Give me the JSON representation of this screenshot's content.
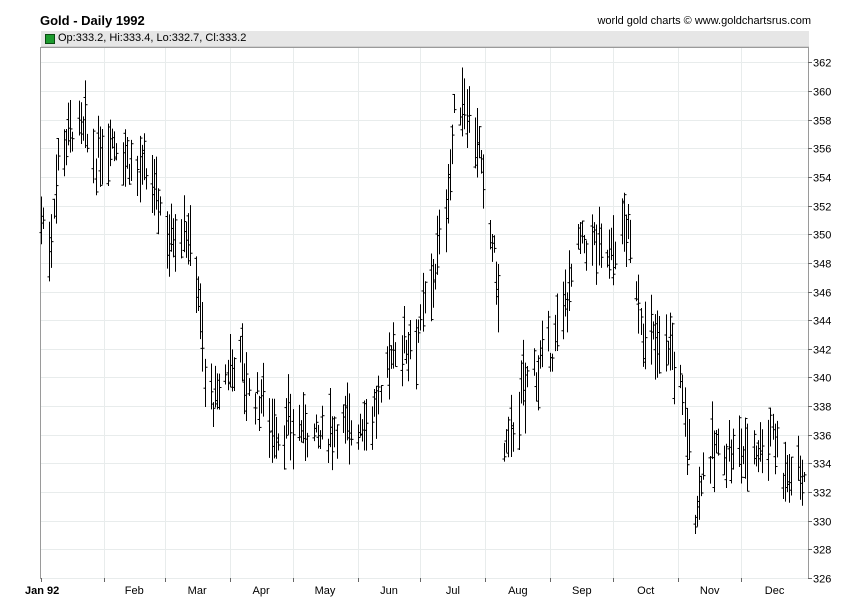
{
  "header": {
    "title": "Gold - Daily 1992",
    "credit": "world gold charts © www.goldchartsrus.com",
    "ohlc_text": "Op:333.2, Hi:333.4, Lo:332.7, Cl:333.2"
  },
  "colors": {
    "legend_swatch": "#1d9b2e",
    "bars": "#000000",
    "grid": "#e8ecec"
  },
  "chart_data": {
    "type": "ohlc",
    "title": "Gold - Daily 1992",
    "grid": true,
    "ylim": [
      326,
      363
    ],
    "y_ticks": [
      "362",
      "360",
      "358",
      "356",
      "354",
      "352",
      "350",
      "348",
      "346",
      "344",
      "342",
      "340",
      "338",
      "336",
      "334",
      "332",
      "330",
      "328",
      "326"
    ],
    "x_ticks": [
      "Jan 92",
      "Feb",
      "Mar",
      "Apr",
      "May",
      "Jun",
      "Jul",
      "Aug",
      "Sep",
      "Oct",
      "Nov",
      "Dec"
    ],
    "x_range": [
      "1992-01-02",
      "1992-12-31"
    ],
    "bars_sample": [
      {
        "date": "1992-01-02",
        "high": 354.5,
        "low": 350.0
      },
      {
        "date": "1992-01-10",
        "high": 359.3,
        "low": 353.0
      },
      {
        "date": "1992-01-20",
        "high": 360.8,
        "low": 355.0
      },
      {
        "date": "1992-02-07",
        "high": 359.8,
        "low": 353.8
      },
      {
        "date": "1992-02-28",
        "high": 354.5,
        "low": 349.0
      },
      {
        "date": "1992-03-20",
        "high": 344.0,
        "low": 337.0
      },
      {
        "date": "1992-04-03",
        "high": 344.8,
        "low": 337.5
      },
      {
        "date": "1992-04-24",
        "high": 339.0,
        "low": 334.0
      },
      {
        "date": "1992-05-05",
        "high": 337.5,
        "low": 332.8
      },
      {
        "date": "1992-05-29",
        "high": 337.5,
        "low": 335.5
      },
      {
        "date": "1992-06-24",
        "high": 344.5,
        "low": 340.5
      },
      {
        "date": "1992-07-08",
        "high": 347.5,
        "low": 343.5
      },
      {
        "date": "1992-07-20",
        "high": 361.0,
        "low": 356.0
      },
      {
        "date": "1992-08-03",
        "high": 353.5,
        "low": 348.0
      },
      {
        "date": "1992-08-11",
        "high": 340.0,
        "low": 332.5
      },
      {
        "date": "1992-08-28",
        "high": 343.5,
        "low": 337.5
      },
      {
        "date": "1992-09-16",
        "high": 353.3,
        "low": 346.0
      },
      {
        "date": "1992-10-06",
        "high": 351.5,
        "low": 347.5
      },
      {
        "date": "1992-10-20",
        "high": 343.5,
        "low": 340.5
      },
      {
        "date": "1992-11-03",
        "high": 339.0,
        "low": 336.0
      },
      {
        "date": "1992-11-09",
        "high": 332.5,
        "low": 328.5
      },
      {
        "date": "1992-11-30",
        "high": 337.0,
        "low": 333.0
      },
      {
        "date": "1992-12-16",
        "high": 339.3,
        "low": 334.0
      },
      {
        "date": "1992-12-31",
        "high": 333.4,
        "low": 332.7
      }
    ],
    "waypoints": [
      [
        "1992-01-02",
        351.5
      ],
      [
        "1992-01-06",
        349.0
      ],
      [
        "1992-01-10",
        355.5
      ],
      [
        "1992-01-16",
        357.5
      ],
      [
        "1992-01-22",
        357.0
      ],
      [
        "1992-01-28",
        355.0
      ],
      [
        "1992-02-04",
        357.0
      ],
      [
        "1992-02-12",
        355.5
      ],
      [
        "1992-02-19",
        354.0
      ],
      [
        "1992-02-26",
        353.0
      ],
      [
        "1992-03-03",
        350.0
      ],
      [
        "1992-03-10",
        351.0
      ],
      [
        "1992-03-17",
        346.5
      ],
      [
        "1992-03-20",
        340.0
      ],
      [
        "1992-03-25",
        338.0
      ],
      [
        "1992-04-01",
        341.0
      ],
      [
        "1992-04-06",
        341.5
      ],
      [
        "1992-04-10",
        339.0
      ],
      [
        "1992-04-17",
        338.5
      ],
      [
        "1992-04-24",
        336.0
      ],
      [
        "1992-05-01",
        336.5
      ],
      [
        "1992-05-08",
        336.5
      ],
      [
        "1992-05-15",
        335.5
      ],
      [
        "1992-05-22",
        336.8
      ],
      [
        "1992-05-29",
        336.5
      ],
      [
        "1992-06-05",
        337.2
      ],
      [
        "1992-06-12",
        338.0
      ],
      [
        "1992-06-17",
        342.0
      ],
      [
        "1992-06-24",
        342.5
      ],
      [
        "1992-07-01",
        343.5
      ],
      [
        "1992-07-06",
        346.5
      ],
      [
        "1992-07-10",
        349.0
      ],
      [
        "1992-07-14",
        353.0
      ],
      [
        "1992-07-17",
        358.0
      ],
      [
        "1992-07-22",
        359.5
      ],
      [
        "1992-07-28",
        357.0
      ],
      [
        "1992-07-31",
        352.5
      ],
      [
        "1992-08-04",
        349.5
      ],
      [
        "1992-08-07",
        346.0
      ],
      [
        "1992-08-10",
        334.5
      ],
      [
        "1992-08-14",
        336.5
      ],
      [
        "1992-08-21",
        340.0
      ],
      [
        "1992-08-28",
        341.0
      ],
      [
        "1992-09-04",
        342.5
      ],
      [
        "1992-09-09",
        346.0
      ],
      [
        "1992-09-14",
        349.0
      ],
      [
        "1992-09-21",
        349.5
      ],
      [
        "1992-09-28",
        348.5
      ],
      [
        "1992-10-02",
        349.5
      ],
      [
        "1992-10-07",
        350.5
      ],
      [
        "1992-10-12",
        346.5
      ],
      [
        "1992-10-16",
        342.5
      ],
      [
        "1992-10-22",
        342.5
      ],
      [
        "1992-10-27",
        342.5
      ],
      [
        "1992-11-02",
        339.5
      ],
      [
        "1992-11-05",
        336.5
      ],
      [
        "1992-11-09",
        330.5
      ],
      [
        "1992-11-13",
        334.0
      ],
      [
        "1992-11-20",
        335.0
      ],
      [
        "1992-11-27",
        334.8
      ],
      [
        "1992-12-04",
        335.0
      ],
      [
        "1992-12-10",
        335.3
      ],
      [
        "1992-12-16",
        336.5
      ],
      [
        "1992-12-21",
        333.5
      ],
      [
        "1992-12-31",
        333.2
      ]
    ]
  }
}
